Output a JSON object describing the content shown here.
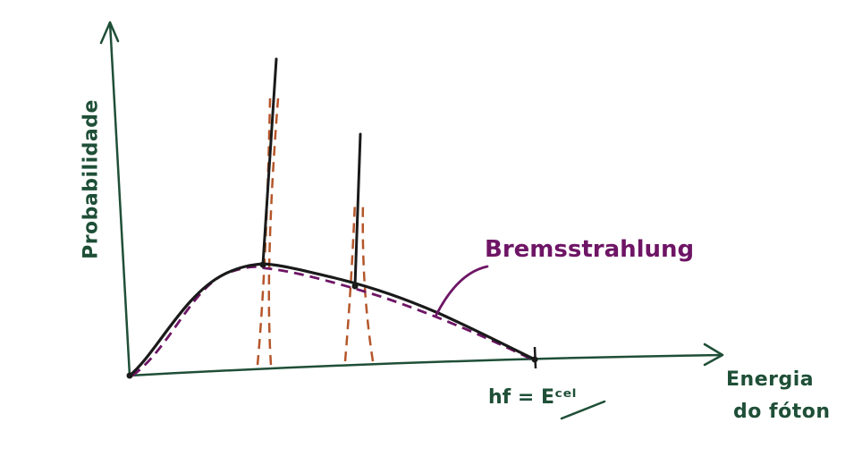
{
  "labels": {
    "y_axis": "Probabilidade",
    "x_axis_line1": "Energia",
    "x_axis_line2": "do fóton",
    "series": "Bremsstrahlung",
    "x_max": "hf = Eᶜᵉˡ"
  },
  "colors": {
    "axis": "#1f4f37",
    "curve": "#1a1a1a",
    "bremsstrahlung": "#6e1565",
    "peak_dashes": "#b5562a"
  }
}
